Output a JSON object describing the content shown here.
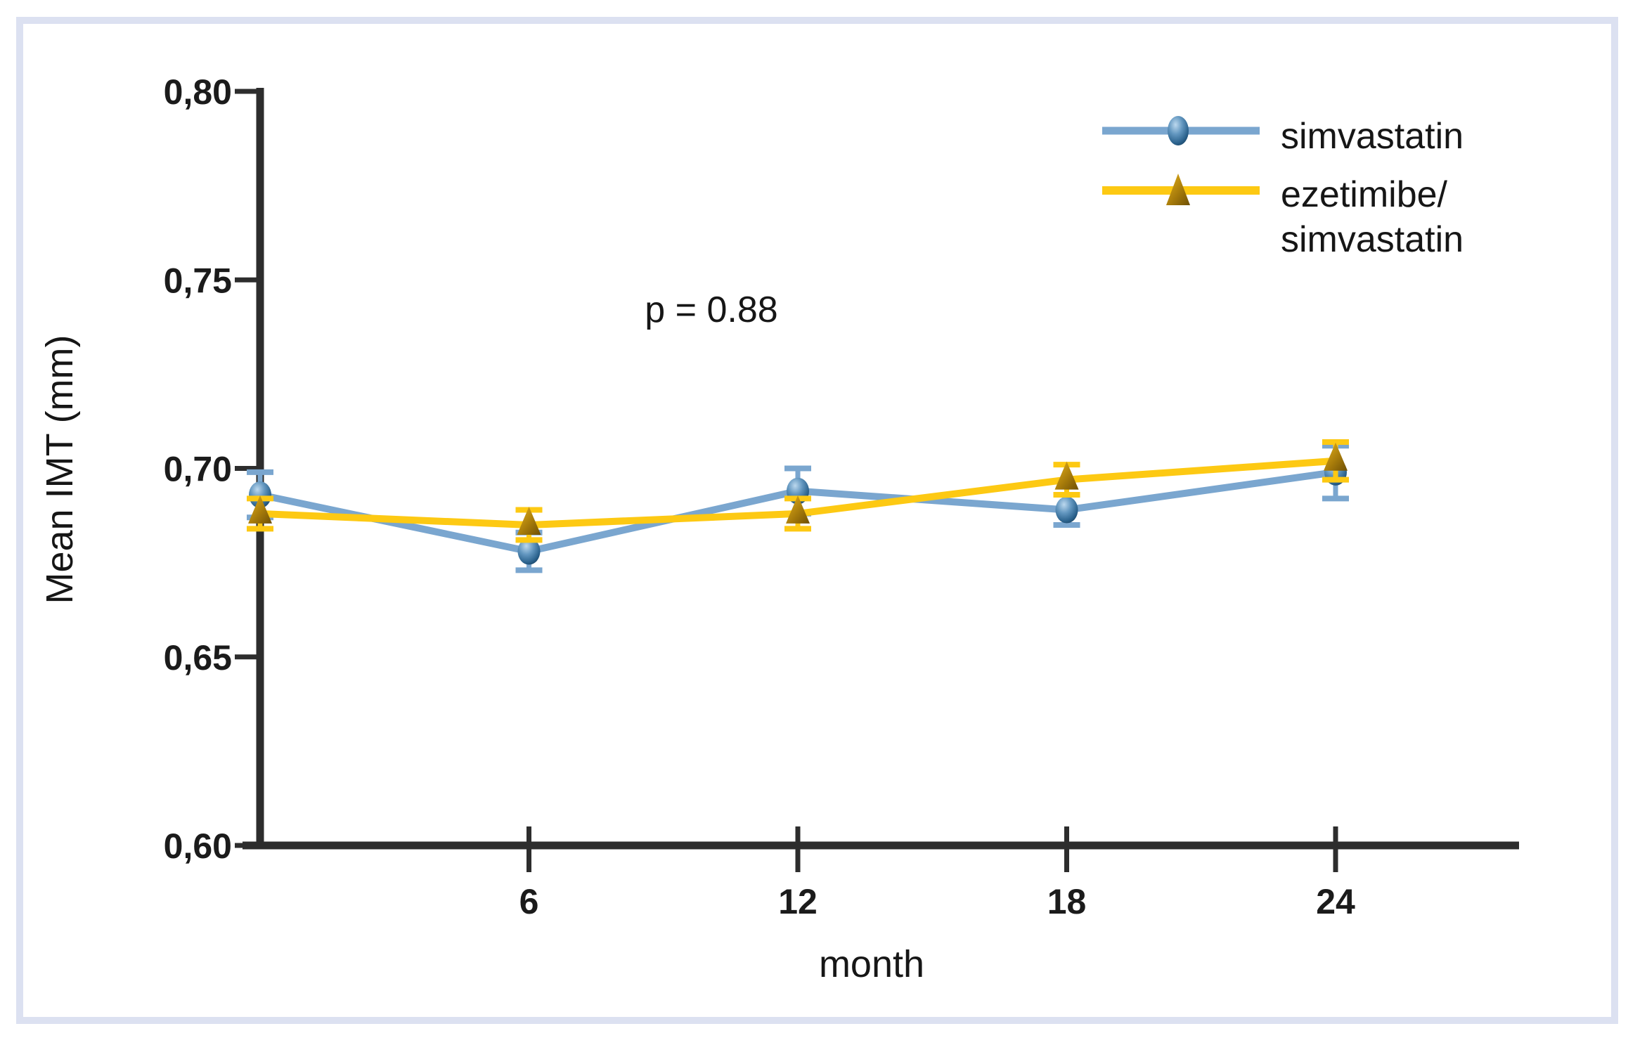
{
  "figure": {
    "frame_color": "#dce1f1",
    "background_color": "#ffffff",
    "axis_color": "#2d2d2d"
  },
  "chart_data": {
    "type": "line",
    "title": "",
    "xlabel": "month",
    "ylabel": "Mean IMT (mm)",
    "annotation": {
      "text": "p = 0.88"
    },
    "xlim": [
      0,
      24
    ],
    "ylim": [
      0.6,
      0.8
    ],
    "grid": false,
    "x": [
      0,
      6,
      12,
      18,
      24
    ],
    "x_ticks": [
      {
        "value": 6,
        "label": "6"
      },
      {
        "value": 12,
        "label": "12"
      },
      {
        "value": 18,
        "label": "18"
      },
      {
        "value": 24,
        "label": "24"
      }
    ],
    "y_ticks": [
      {
        "value": 0.8,
        "label": "0,80"
      },
      {
        "value": 0.75,
        "label": "0,75"
      },
      {
        "value": 0.7,
        "label": "0,70"
      },
      {
        "value": 0.65,
        "label": "0,65"
      },
      {
        "value": 0.6,
        "label": "0,60"
      }
    ],
    "series": [
      {
        "name": "simvastatin",
        "marker": "circle",
        "color": "#7aa6cf",
        "marker_color_dark": "#1d4a6c",
        "values": [
          0.693,
          0.678,
          0.694,
          0.689,
          0.699
        ],
        "errors": [
          0.006,
          0.005,
          0.006,
          0.004,
          0.007
        ]
      },
      {
        "name": "ezetimibe/simvastatin",
        "marker": "triangle",
        "color": "#fdc913",
        "marker_color_dark": "#8a650a",
        "values": [
          0.688,
          0.685,
          0.688,
          0.697,
          0.702
        ],
        "errors": [
          0.004,
          0.004,
          0.004,
          0.004,
          0.005
        ]
      }
    ],
    "legend": {
      "position": "top-right",
      "entries": [
        {
          "series": "simvastatin",
          "lines": [
            "simvastatin"
          ]
        },
        {
          "series": "ezetimibe/simvastatin",
          "lines": [
            "ezetimibe/",
            "simvastatin"
          ]
        }
      ]
    }
  }
}
